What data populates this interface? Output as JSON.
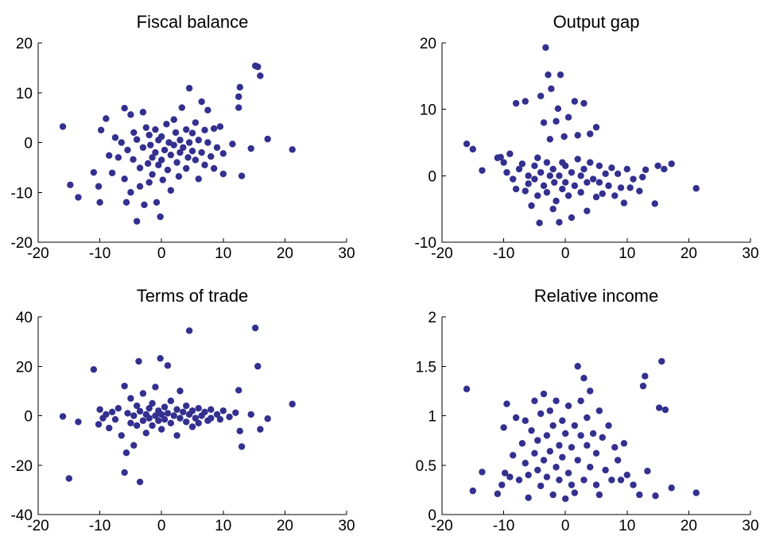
{
  "figure": {
    "background": "#ffffff",
    "marker_color": "#33308f"
  },
  "chart_data": [
    {
      "type": "scatter",
      "title": "Fiscal balance",
      "xlabel": "",
      "ylabel": "",
      "xlim": [
        -20,
        30
      ],
      "ylim": [
        -20,
        20
      ],
      "xticks": [
        -20,
        -10,
        0,
        10,
        20,
        30
      ],
      "yticks": [
        -20,
        -10,
        0,
        10,
        20
      ],
      "grid": false,
      "points": [
        [
          -16,
          3.2
        ],
        [
          -14.8,
          -8.5
        ],
        [
          -13.5,
          -11
        ],
        [
          -11,
          -6
        ],
        [
          -10.2,
          -8.8
        ],
        [
          -10,
          -12
        ],
        [
          -9.8,
          2.5
        ],
        [
          -9,
          4.8
        ],
        [
          -8.5,
          -2.6
        ],
        [
          -8,
          -6.1
        ],
        [
          -7.5,
          1
        ],
        [
          -7,
          -3
        ],
        [
          -6.5,
          0
        ],
        [
          -6,
          -7.3
        ],
        [
          -6,
          6.9
        ],
        [
          -5.7,
          -12
        ],
        [
          -5.5,
          -1.5
        ],
        [
          -5,
          5.6
        ],
        [
          -5,
          -10
        ],
        [
          -4.6,
          -3.4
        ],
        [
          -4.5,
          2
        ],
        [
          -4,
          -15.8
        ],
        [
          -4,
          0.6
        ],
        [
          -3.5,
          -5.1
        ],
        [
          -3.5,
          -8.8
        ],
        [
          -3,
          6.1
        ],
        [
          -3,
          -1
        ],
        [
          -2.8,
          -12.5
        ],
        [
          -2.5,
          3
        ],
        [
          -2.2,
          -4.2
        ],
        [
          -2,
          1.5
        ],
        [
          -2,
          -8
        ],
        [
          -1.8,
          -0.5
        ],
        [
          -1.5,
          -3
        ],
        [
          -1.5,
          -6.4
        ],
        [
          -1,
          2.6
        ],
        [
          -1,
          -2
        ],
        [
          -0.8,
          -12
        ],
        [
          -0.5,
          0.5
        ],
        [
          -0.5,
          -4.5
        ],
        [
          -0.2,
          -14.9
        ],
        [
          0,
          1.2
        ],
        [
          0,
          -3.5
        ],
        [
          0.2,
          -7.5
        ],
        [
          0.5,
          -1.5
        ],
        [
          0.8,
          3.7
        ],
        [
          1,
          -5.5
        ],
        [
          1.2,
          0
        ],
        [
          1.5,
          -2.5
        ],
        [
          1.5,
          -9.6
        ],
        [
          2,
          4.6
        ],
        [
          2,
          -0.5
        ],
        [
          2.3,
          2
        ],
        [
          2.5,
          -4
        ],
        [
          2.8,
          -6.8
        ],
        [
          3,
          0.5
        ],
        [
          3,
          -2
        ],
        [
          3.3,
          7
        ],
        [
          3.5,
          -1
        ],
        [
          4,
          2.6
        ],
        [
          4,
          -5.2
        ],
        [
          4.3,
          -3
        ],
        [
          4.5,
          10.9
        ],
        [
          4.5,
          0
        ],
        [
          5,
          -1.7
        ],
        [
          5,
          1.9
        ],
        [
          5.5,
          4
        ],
        [
          5.5,
          -3.5
        ],
        [
          6,
          -7.3
        ],
        [
          6,
          0.5
        ],
        [
          6.5,
          8.2
        ],
        [
          6.5,
          -2
        ],
        [
          7,
          2.5
        ],
        [
          7,
          -4.5
        ],
        [
          7.5,
          6.5
        ],
        [
          7.5,
          0
        ],
        [
          8,
          -2.8
        ],
        [
          8.5,
          2.8
        ],
        [
          8.5,
          -5.2
        ],
        [
          9,
          -1
        ],
        [
          9.5,
          3.2
        ],
        [
          10,
          -2.2
        ],
        [
          10,
          -6.3
        ],
        [
          11.5,
          -0.3
        ],
        [
          12.5,
          7
        ],
        [
          12.5,
          9.2
        ],
        [
          12.7,
          11.1
        ],
        [
          13,
          -6.7
        ],
        [
          14.5,
          -1.2
        ],
        [
          15.2,
          15.4
        ],
        [
          15.6,
          15.2
        ],
        [
          16,
          13.4
        ],
        [
          17.2,
          0.7
        ],
        [
          21.2,
          -1.4
        ]
      ]
    },
    {
      "type": "scatter",
      "title": "Output gap",
      "xlabel": "",
      "ylabel": "",
      "xlim": [
        -20,
        30
      ],
      "ylim": [
        -10,
        20
      ],
      "xticks": [
        -20,
        -10,
        0,
        10,
        20,
        30
      ],
      "yticks": [
        -10,
        0,
        10,
        20
      ],
      "grid": false,
      "points": [
        [
          -16,
          4.8
        ],
        [
          -15,
          4
        ],
        [
          -13.5,
          0.8
        ],
        [
          -11,
          2.7
        ],
        [
          -10.5,
          2.8
        ],
        [
          -10,
          2
        ],
        [
          -9.5,
          0.5
        ],
        [
          -9,
          3.3
        ],
        [
          -8.5,
          -0.5
        ],
        [
          -8,
          10.9
        ],
        [
          -8,
          -2
        ],
        [
          -7.5,
          1
        ],
        [
          -7,
          1.8
        ],
        [
          -6.5,
          -2.3
        ],
        [
          -6.5,
          11.2
        ],
        [
          -6,
          0
        ],
        [
          -6,
          -1.2
        ],
        [
          -5.5,
          -4.5
        ],
        [
          -5,
          1.5
        ],
        [
          -5,
          -0.5
        ],
        [
          -4.5,
          2.7
        ],
        [
          -4.5,
          -3
        ],
        [
          -4.2,
          -7.1
        ],
        [
          -4,
          0.5
        ],
        [
          -4,
          12
        ],
        [
          -3.5,
          -1.5
        ],
        [
          -3.5,
          8
        ],
        [
          -3.2,
          19.3
        ],
        [
          -3,
          2
        ],
        [
          -3,
          -2.5
        ],
        [
          -2.8,
          15.2
        ],
        [
          -2.5,
          0
        ],
        [
          -2.5,
          5.5
        ],
        [
          -2.3,
          13.1
        ],
        [
          -2,
          -5
        ],
        [
          -2,
          1
        ],
        [
          -1.8,
          -1
        ],
        [
          -1.5,
          8.2
        ],
        [
          -1.5,
          -3.8
        ],
        [
          -1.2,
          10.1
        ],
        [
          -1,
          0
        ],
        [
          -1,
          -7
        ],
        [
          -0.8,
          15.2
        ],
        [
          -0.5,
          2
        ],
        [
          -0.5,
          -2
        ],
        [
          -0.2,
          5.9
        ],
        [
          0,
          -1
        ],
        [
          0,
          1.5
        ],
        [
          0.5,
          -3
        ],
        [
          0.5,
          8.8
        ],
        [
          1,
          0.5
        ],
        [
          1,
          -6.3
        ],
        [
          1.5,
          11.2
        ],
        [
          1.5,
          -1.5
        ],
        [
          2,
          2.5
        ],
        [
          2,
          6.1
        ],
        [
          2.5,
          -2.5
        ],
        [
          2.5,
          0
        ],
        [
          3,
          10.9
        ],
        [
          3,
          1
        ],
        [
          3.5,
          -5.3
        ],
        [
          3.5,
          -1
        ],
        [
          4,
          2
        ],
        [
          4,
          6.3
        ],
        [
          4.5,
          -0.5
        ],
        [
          5,
          7.3
        ],
        [
          5,
          -3.2
        ],
        [
          5.5,
          1.5
        ],
        [
          5.5,
          -1
        ],
        [
          6,
          -2.7
        ],
        [
          6.5,
          0.3
        ],
        [
          7,
          -1.5
        ],
        [
          7.5,
          1.2
        ],
        [
          8,
          -3
        ],
        [
          8.5,
          0.3
        ],
        [
          9,
          -1.8
        ],
        [
          9.5,
          -4.1
        ],
        [
          10,
          1
        ],
        [
          10.5,
          -1.8
        ],
        [
          11,
          -0.5
        ],
        [
          12,
          -2.3
        ],
        [
          12.5,
          -0.2
        ],
        [
          13,
          0.9
        ],
        [
          14.5,
          -4.2
        ],
        [
          15,
          1.5
        ],
        [
          16,
          1
        ],
        [
          17.2,
          1.8
        ],
        [
          21.2,
          -1.9
        ]
      ]
    },
    {
      "type": "scatter",
      "title": "Terms of trade",
      "xlabel": "",
      "ylabel": "",
      "xlim": [
        -20,
        30
      ],
      "ylim": [
        -40,
        40
      ],
      "xticks": [
        -20,
        -10,
        0,
        10,
        20,
        30
      ],
      "yticks": [
        -40,
        -20,
        0,
        20,
        40
      ],
      "grid": false,
      "points": [
        [
          -16,
          -0.3
        ],
        [
          -15,
          -25.4
        ],
        [
          -13.5,
          -2.5
        ],
        [
          -11,
          18.7
        ],
        [
          -10.2,
          -3.5
        ],
        [
          -10,
          2.5
        ],
        [
          -9.5,
          -1
        ],
        [
          -9,
          0.5
        ],
        [
          -8.5,
          -5
        ],
        [
          -8,
          1.5
        ],
        [
          -7.5,
          -1.5
        ],
        [
          -7,
          3
        ],
        [
          -6.5,
          -8
        ],
        [
          -6,
          12
        ],
        [
          -6,
          -23
        ],
        [
          -5.7,
          -15
        ],
        [
          -5.5,
          1
        ],
        [
          -5,
          -3
        ],
        [
          -5,
          7
        ],
        [
          -4.5,
          -12
        ],
        [
          -4.5,
          0
        ],
        [
          -4,
          4
        ],
        [
          -4,
          -4
        ],
        [
          -3.7,
          22
        ],
        [
          -3.5,
          -26.8
        ],
        [
          -3.5,
          1.8
        ],
        [
          -3,
          -2
        ],
        [
          -3,
          9
        ],
        [
          -2.5,
          0.5
        ],
        [
          -2.5,
          -7
        ],
        [
          -2,
          3
        ],
        [
          -2,
          -1
        ],
        [
          -1.5,
          5
        ],
        [
          -1.5,
          -4
        ],
        [
          -1,
          0
        ],
        [
          -1,
          11.6
        ],
        [
          -0.5,
          -2
        ],
        [
          -0.5,
          2
        ],
        [
          -0.2,
          23.2
        ],
        [
          0,
          -5.5
        ],
        [
          0,
          0.5
        ],
        [
          0.5,
          3.5
        ],
        [
          0.5,
          -1.5
        ],
        [
          1,
          20.3
        ],
        [
          1,
          1
        ],
        [
          1.5,
          -3
        ],
        [
          1.5,
          6
        ],
        [
          2,
          0
        ],
        [
          2.5,
          -8
        ],
        [
          2.5,
          2.5
        ],
        [
          3,
          -1
        ],
        [
          3,
          10
        ],
        [
          3.5,
          1.5
        ],
        [
          4,
          -2.5
        ],
        [
          4,
          4
        ],
        [
          4.5,
          34.4
        ],
        [
          4.5,
          0.5
        ],
        [
          5,
          -4.5
        ],
        [
          5,
          2
        ],
        [
          5.5,
          -1
        ],
        [
          6,
          3
        ],
        [
          6,
          -3
        ],
        [
          6.5,
          0
        ],
        [
          7,
          1.5
        ],
        [
          7.5,
          -2
        ],
        [
          8,
          2.5
        ],
        [
          8,
          -1
        ],
        [
          9,
          0.5
        ],
        [
          9.5,
          -1.5
        ],
        [
          10,
          2
        ],
        [
          11,
          -0.5
        ],
        [
          12,
          1.2
        ],
        [
          12.5,
          10.3
        ],
        [
          12.7,
          -6.2
        ],
        [
          13,
          -12.5
        ],
        [
          14.5,
          0.5
        ],
        [
          15.2,
          35.5
        ],
        [
          15.6,
          20
        ],
        [
          16,
          -5.5
        ],
        [
          17.2,
          -1.2
        ],
        [
          21.2,
          4.7
        ]
      ]
    },
    {
      "type": "scatter",
      "title": "Relative income",
      "xlabel": "",
      "ylabel": "",
      "xlim": [
        -20,
        30
      ],
      "ylim": [
        0,
        2
      ],
      "xticks": [
        -20,
        -10,
        0,
        10,
        20,
        30
      ],
      "yticks": [
        0,
        0.5,
        1,
        1.5,
        2
      ],
      "grid": false,
      "points": [
        [
          -16,
          1.27
        ],
        [
          -15,
          0.24
        ],
        [
          -13.5,
          0.43
        ],
        [
          -11,
          0.21
        ],
        [
          -10.3,
          0.3
        ],
        [
          -10,
          0.88
        ],
        [
          -9.8,
          0.42
        ],
        [
          -9.5,
          1.12
        ],
        [
          -9,
          0.38
        ],
        [
          -8.5,
          0.6
        ],
        [
          -8,
          0.98
        ],
        [
          -7.5,
          0.35
        ],
        [
          -7,
          0.72
        ],
        [
          -6.5,
          0.52
        ],
        [
          -6.5,
          0.95
        ],
        [
          -6,
          0.17
        ],
        [
          -6,
          0.4
        ],
        [
          -5.5,
          0.85
        ],
        [
          -5,
          0.62
        ],
        [
          -5,
          1.15
        ],
        [
          -4.5,
          0.45
        ],
        [
          -4.5,
          0.75
        ],
        [
          -4,
          1.02
        ],
        [
          -4,
          0.29
        ],
        [
          -3.5,
          0.55
        ],
        [
          -3.5,
          1.22
        ],
        [
          -3,
          0.8
        ],
        [
          -3,
          0.38
        ],
        [
          -2.5,
          1.05
        ],
        [
          -2.5,
          0.64
        ],
        [
          -2,
          0.2
        ],
        [
          -2,
          0.9
        ],
        [
          -1.5,
          0.48
        ],
        [
          -1.5,
          1.15
        ],
        [
          -1,
          0.7
        ],
        [
          -1,
          0.35
        ],
        [
          -0.5,
          0.95
        ],
        [
          -0.5,
          0.58
        ],
        [
          0,
          0.16
        ],
        [
          0,
          0.82
        ],
        [
          0.5,
          1.1
        ],
        [
          0.5,
          0.42
        ],
        [
          1,
          0.68
        ],
        [
          1,
          0.3
        ],
        [
          1.5,
          0.9
        ],
        [
          1.5,
          0.22
        ],
        [
          2,
          1.5
        ],
        [
          2,
          0.55
        ],
        [
          2.5,
          0.8
        ],
        [
          2.5,
          1.15
        ],
        [
          3,
          0.35
        ],
        [
          3,
          1.38
        ],
        [
          3.5,
          0.7
        ],
        [
          3.5,
          0.98
        ],
        [
          4,
          0.48
        ],
        [
          4,
          1.25
        ],
        [
          4.5,
          0.82
        ],
        [
          5,
          0.3
        ],
        [
          5,
          0.62
        ],
        [
          5.5,
          1.05
        ],
        [
          5.5,
          0.2
        ],
        [
          6,
          0.78
        ],
        [
          6.5,
          0.45
        ],
        [
          7,
          0.9
        ],
        [
          7.5,
          0.35
        ],
        [
          8,
          0.68
        ],
        [
          8.5,
          0.55
        ],
        [
          9,
          0.35
        ],
        [
          9.5,
          0.72
        ],
        [
          10,
          0.4
        ],
        [
          11,
          0.3
        ],
        [
          12,
          0.2
        ],
        [
          12.6,
          1.3
        ],
        [
          12.9,
          1.4
        ],
        [
          13.3,
          0.44
        ],
        [
          14.6,
          0.19
        ],
        [
          15.2,
          1.08
        ],
        [
          15.6,
          1.55
        ],
        [
          16.2,
          1.06
        ],
        [
          17.2,
          0.27
        ],
        [
          21.2,
          0.22
        ]
      ]
    }
  ]
}
